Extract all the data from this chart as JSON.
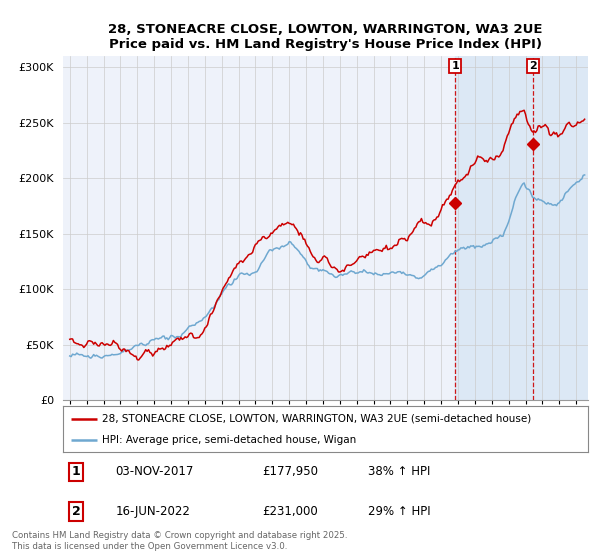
{
  "title": "28, STONEACRE CLOSE, LOWTON, WARRINGTON, WA3 2UE",
  "subtitle": "Price paid vs. HM Land Registry's House Price Index (HPI)",
  "legend_line1": "28, STONEACRE CLOSE, LOWTON, WARRINGTON, WA3 2UE (semi-detached house)",
  "legend_line2": "HPI: Average price, semi-detached house, Wigan",
  "annotation1_date": "03-NOV-2017",
  "annotation1_price": "£177,950",
  "annotation1_hpi": "38% ↑ HPI",
  "annotation2_date": "16-JUN-2022",
  "annotation2_price": "£231,000",
  "annotation2_hpi": "29% ↑ HPI",
  "footer": "Contains HM Land Registry data © Crown copyright and database right 2025.\nThis data is licensed under the Open Government Licence v3.0.",
  "red_color": "#cc0000",
  "blue_color": "#6fa8d0",
  "bg_chart": "#eef2fa",
  "bg_shaded": "#dce8f5",
  "grid_color": "#cccccc",
  "ylim": [
    0,
    310000
  ],
  "yticks": [
    0,
    50000,
    100000,
    150000,
    200000,
    250000,
    300000
  ],
  "ytick_labels": [
    "£0",
    "£50K",
    "£100K",
    "£150K",
    "£200K",
    "£250K",
    "£300K"
  ],
  "marker1_x": 2017.84,
  "marker1_y": 177950,
  "marker2_x": 2022.46,
  "marker2_y": 231000,
  "shade_start": 2017.84,
  "xmin": 1994.6,
  "xmax": 2025.7
}
